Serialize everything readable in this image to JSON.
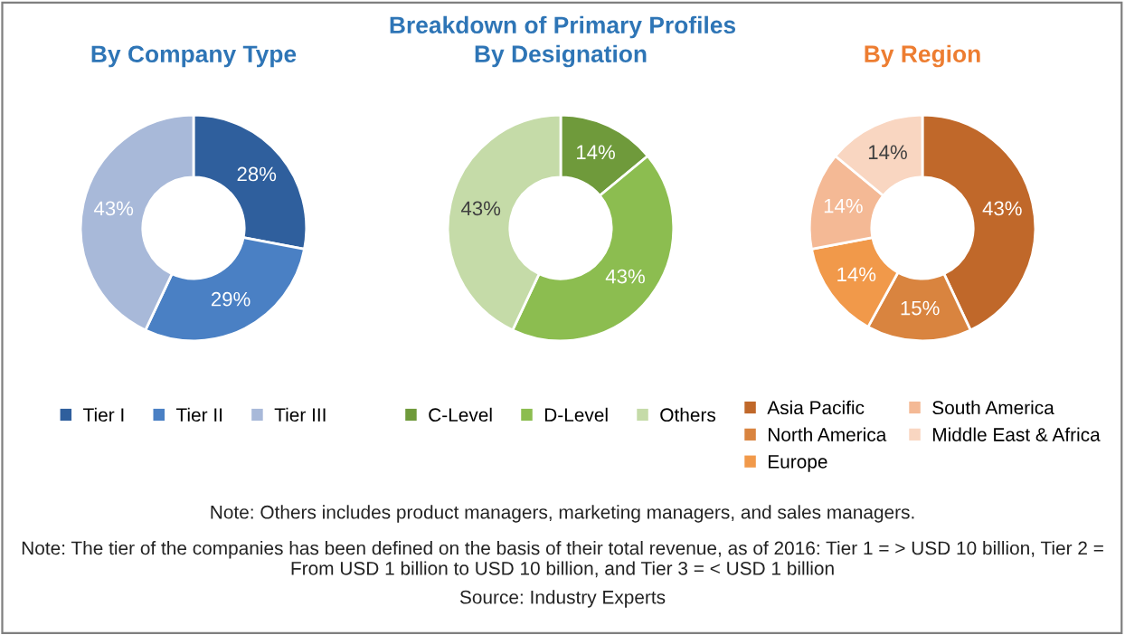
{
  "chart_data": [
    {
      "type": "donut",
      "subtitle": "By Company Type",
      "categories": [
        "Tier I",
        "Tier II",
        "Tier III"
      ],
      "values": [
        28,
        29,
        43
      ],
      "value_labels": [
        "28%",
        "29%",
        "43%"
      ],
      "colors": [
        "#2f5f9d",
        "#4a80c4",
        "#a8b9d9"
      ],
      "legend": "bottom"
    },
    {
      "type": "donut",
      "title": "Breakdown of Primary Profiles",
      "subtitle": "By Designation",
      "categories": [
        "C-Level",
        "D-Level",
        "Others"
      ],
      "values": [
        14,
        43,
        43
      ],
      "value_labels": [
        "14%",
        "43%",
        "43%"
      ],
      "colors": [
        "#6f9a3b",
        "#8cbd50",
        "#c5dba8"
      ],
      "legend": "bottom",
      "annotations": [
        "Note: Others includes product managers, marketing managers, and sales managers.",
        "Note: The tier of the companies has been defined on the basis of their total revenue, as of 2016: Tier 1 = > USD 10 billion, Tier 2 = From USD 1 billion to USD 10 billion, and Tier 3 = < USD 1 billion",
        "Source: Industry Experts"
      ]
    },
    {
      "type": "donut",
      "subtitle": "By Region",
      "categories": [
        "Asia Pacific",
        "North America",
        "Europe",
        "South America",
        "Middle East & Africa"
      ],
      "values": [
        43,
        15,
        14,
        14,
        14
      ],
      "value_labels": [
        "43%",
        "15%",
        "14%",
        "14%",
        "14%"
      ],
      "colors": [
        "#c0682a",
        "#d9843f",
        "#f1994a",
        "#f4b995",
        "#f9d6c1"
      ],
      "legend": "bottom"
    }
  ]
}
